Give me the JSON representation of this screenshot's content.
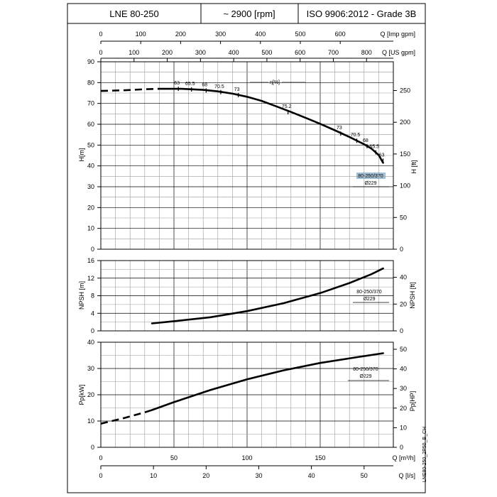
{
  "header": {
    "model": "LNE 80-250",
    "speed": "~ 2900 [rpm]",
    "standard": "ISO 9906:2012 - Grade 3B"
  },
  "footer_code": "LNE80-250_2P50_B_CH",
  "chart_data": [
    {
      "type": "line",
      "panel": "head",
      "ylabel": "H[m]",
      "ylabel2": "H [ft]",
      "ylim": [
        0,
        90
      ],
      "yticks": [
        0,
        10,
        20,
        30,
        40,
        50,
        60,
        70,
        80,
        90
      ],
      "y2lim_ft": [
        0,
        295.3
      ],
      "y2ticks": [
        0,
        50,
        100,
        150,
        200,
        250
      ],
      "xlim_m3h": [
        0,
        200
      ],
      "xlabel_top1": "Q [Imp gpm]",
      "xticks_top1": [
        0,
        100,
        200,
        300,
        400,
        500,
        600
      ],
      "xlabel_top2": "Q [US gpm]",
      "xticks_top2": [
        0,
        100,
        200,
        300,
        400,
        500,
        600,
        700,
        800
      ],
      "efficiency_label": "η[%]",
      "series": [
        {
          "name": "80-250/370",
          "subtitle": "Ø229",
          "dashed_x": [
            0,
            15,
            30,
            40
          ],
          "dashed_y": [
            76,
            76.3,
            76.8,
            77
          ],
          "x": [
            40,
            55,
            70,
            80,
            90,
            100,
            110,
            120,
            130,
            140,
            150,
            160,
            170,
            180,
            185,
            190,
            193
          ],
          "y": [
            77,
            77,
            76.5,
            75.8,
            74.7,
            73.2,
            71.2,
            68.6,
            65.9,
            63.1,
            60.2,
            57.1,
            53.9,
            50.4,
            48.3,
            45.2,
            41.5
          ]
        }
      ],
      "efficiency_points": [
        {
          "x": 53,
          "y": 77,
          "label": "63"
        },
        {
          "x": 62,
          "y": 76.7,
          "label": "65.5"
        },
        {
          "x": 72,
          "y": 76.2,
          "label": "68"
        },
        {
          "x": 82,
          "y": 75.4,
          "label": "70.5"
        },
        {
          "x": 94,
          "y": 74,
          "label": "73"
        },
        {
          "x": 128,
          "y": 65.8,
          "label": "75.2"
        },
        {
          "x": 164,
          "y": 55.5,
          "label": "73"
        },
        {
          "x": 175,
          "y": 52.1,
          "label": "70.5"
        },
        {
          "x": 182,
          "y": 49.5,
          "label": "68"
        },
        {
          "x": 188,
          "y": 46.5,
          "label": "65.5"
        },
        {
          "x": 193,
          "y": 42.5,
          "label": "63"
        }
      ]
    },
    {
      "type": "line",
      "panel": "npsh",
      "ylabel": "NPSH [m]",
      "ylabel2": "NPSH [ft]",
      "ylim": [
        0,
        16
      ],
      "yticks": [
        0,
        4,
        8,
        12,
        16
      ],
      "y2lim_ft": [
        0,
        52.5
      ],
      "y2ticks": [
        0,
        20,
        40
      ],
      "series": [
        {
          "name": "80-250/370",
          "subtitle": "Ø229",
          "x": [
            35,
            50,
            75,
            100,
            125,
            150,
            170,
            185,
            193
          ],
          "y": [
            1.7,
            2.2,
            3.1,
            4.5,
            6.3,
            8.6,
            10.9,
            12.9,
            14.2
          ]
        }
      ]
    },
    {
      "type": "line",
      "panel": "power",
      "ylabel": "Pp[kW]",
      "ylabel2": "Pp[HP]",
      "ylim": [
        0,
        40
      ],
      "yticks": [
        0,
        10,
        20,
        30,
        40
      ],
      "y2lim_hp": [
        0,
        53.6
      ],
      "y2ticks": [
        0,
        10,
        20,
        30,
        40,
        50
      ],
      "xlabel": "Q [m³/h]",
      "xticks": [
        0,
        50,
        100,
        150
      ],
      "xlabel2": "Q [l/s]",
      "xticks2": [
        0,
        10,
        20,
        30,
        40,
        50
      ],
      "series": [
        {
          "name": "80-250/370",
          "subtitle": "Ø229",
          "dashed_x": [
            0,
            15,
            30,
            35
          ],
          "dashed_y": [
            9,
            11,
            13.3,
            14.2
          ],
          "x": [
            35,
            50,
            75,
            100,
            125,
            150,
            175,
            193
          ],
          "y": [
            14.2,
            17.2,
            21.8,
            25.9,
            29.3,
            32.1,
            34.3,
            35.8
          ]
        }
      ]
    }
  ]
}
